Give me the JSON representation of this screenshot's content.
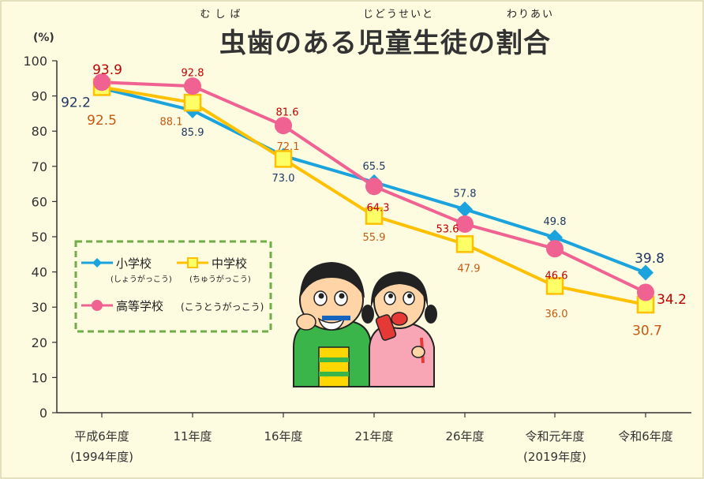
{
  "chart_data": {
    "type": "line",
    "title": "虫歯のある児童生徒の割合",
    "title_ruby": [
      {
        "text": "むしば",
        "over": "虫歯"
      },
      {
        "text": "じどうせいと",
        "over": "児童生徒"
      },
      {
        "text": "わりあい",
        "over": "割合"
      }
    ],
    "y_unit": "(%)",
    "ylim": [
      0,
      100
    ],
    "yticks": [
      "0",
      "10",
      "20",
      "30",
      "40",
      "50",
      "60",
      "70",
      "80",
      "90",
      "100"
    ],
    "categories": [
      {
        "line1": "平成6年度",
        "line2": "(1994年度)"
      },
      {
        "line1": "11年度",
        "line2": ""
      },
      {
        "line1": "16年度",
        "line2": ""
      },
      {
        "line1": "21年度",
        "line2": ""
      },
      {
        "line1": "26年度",
        "line2": ""
      },
      {
        "line1": "令和元年度",
        "line2": "(2019年度)"
      },
      {
        "line1": "令和6年度",
        "line2": ""
      }
    ],
    "series": [
      {
        "name": "小学校",
        "reading": "(しょうがっこう)",
        "color": "#1aa3dd",
        "marker": "diamond",
        "label_color": "#1f3864",
        "values": [
          92.2,
          85.9,
          73.0,
          65.5,
          57.8,
          49.8,
          39.8
        ],
        "labels": [
          "92.2",
          "85.9",
          "73.0",
          "65.5",
          "57.8",
          "49.8",
          "39.8"
        ]
      },
      {
        "name": "中学校",
        "reading": "(ちゅうがっこう)",
        "color": "#ffc000",
        "marker": "square",
        "label_color": "#c55a11",
        "values": [
          92.5,
          88.1,
          72.1,
          55.9,
          47.9,
          36.0,
          30.7
        ],
        "labels": [
          "92.5",
          "88.1",
          "72.1",
          "55.9",
          "47.9",
          "36.0",
          "30.7"
        ]
      },
      {
        "name": "高等学校",
        "reading": "(こうとうがっこう)",
        "color": "#f06292",
        "marker": "circle",
        "label_color": "#c00000",
        "values": [
          93.9,
          92.8,
          81.6,
          64.3,
          53.6,
          46.6,
          34.2
        ],
        "labels": [
          "93.9",
          "92.8",
          "81.6",
          "64.3",
          "53.6",
          "46.6",
          "34.2"
        ]
      }
    ],
    "legend_position": "center-left",
    "grid": false
  }
}
